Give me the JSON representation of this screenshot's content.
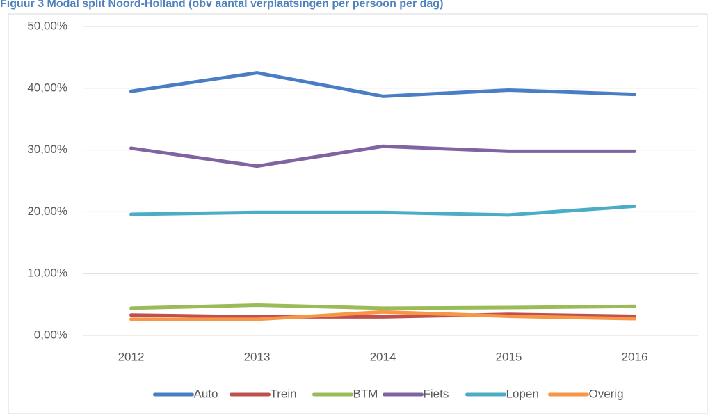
{
  "chart_data": {
    "type": "line",
    "title": "Figuur 3 Modal split Noord-Holland (obv aantal verplaatsingen per persoon per dag)",
    "categories": [
      "2012",
      "2013",
      "2014",
      "2015",
      "2016"
    ],
    "series": [
      {
        "name": "Auto",
        "color": "#4a7ec4",
        "values": [
          39.5,
          42.5,
          38.7,
          39.7,
          39.0
        ]
      },
      {
        "name": "Trein",
        "color": "#c0504d",
        "values": [
          3.3,
          3.0,
          3.0,
          3.4,
          3.1
        ]
      },
      {
        "name": "BTM",
        "color": "#9bbb59",
        "values": [
          4.4,
          4.9,
          4.4,
          4.5,
          4.7
        ]
      },
      {
        "name": "Fiets",
        "color": "#8064a2",
        "values": [
          30.3,
          27.4,
          30.6,
          29.8,
          29.8
        ]
      },
      {
        "name": "Lopen",
        "color": "#4bacc6",
        "values": [
          19.6,
          19.9,
          19.9,
          19.5,
          20.9
        ]
      },
      {
        "name": "Overig",
        "color": "#f79646",
        "values": [
          2.6,
          2.6,
          3.8,
          3.1,
          2.7
        ]
      }
    ],
    "ylim": [
      0,
      50
    ],
    "yticks": [
      {
        "value": 0,
        "label": "0,00%"
      },
      {
        "value": 10,
        "label": "10,00%"
      },
      {
        "value": 20,
        "label": "20,00%"
      },
      {
        "value": 30,
        "label": "30,00%"
      },
      {
        "value": 40,
        "label": "40,00%"
      },
      {
        "value": 50,
        "label": "50,00%"
      }
    ],
    "grid": true,
    "legend": "bottom"
  }
}
